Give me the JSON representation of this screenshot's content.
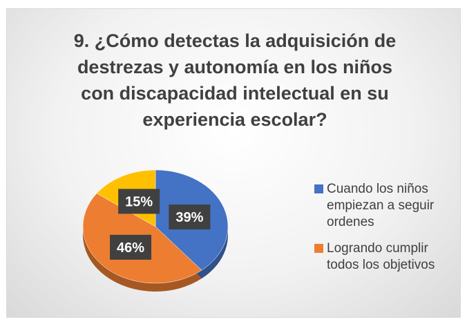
{
  "chart_data": {
    "type": "pie",
    "title": "9. ¿Cómo detectas la adquisición de destrezas y autonomía en los niños con discapacidad intelectual en su experiencia escolar?",
    "categories": [
      "Cuando los niños empiezan a seguir ordenes",
      "Logrando cumplir todos los objetivos",
      null
    ],
    "values": [
      39,
      46,
      15
    ],
    "value_labels": [
      "39%",
      "46%",
      "15%"
    ],
    "colors": [
      "#4472c4",
      "#ed7d31",
      "#ffc000"
    ],
    "legend": "right"
  }
}
